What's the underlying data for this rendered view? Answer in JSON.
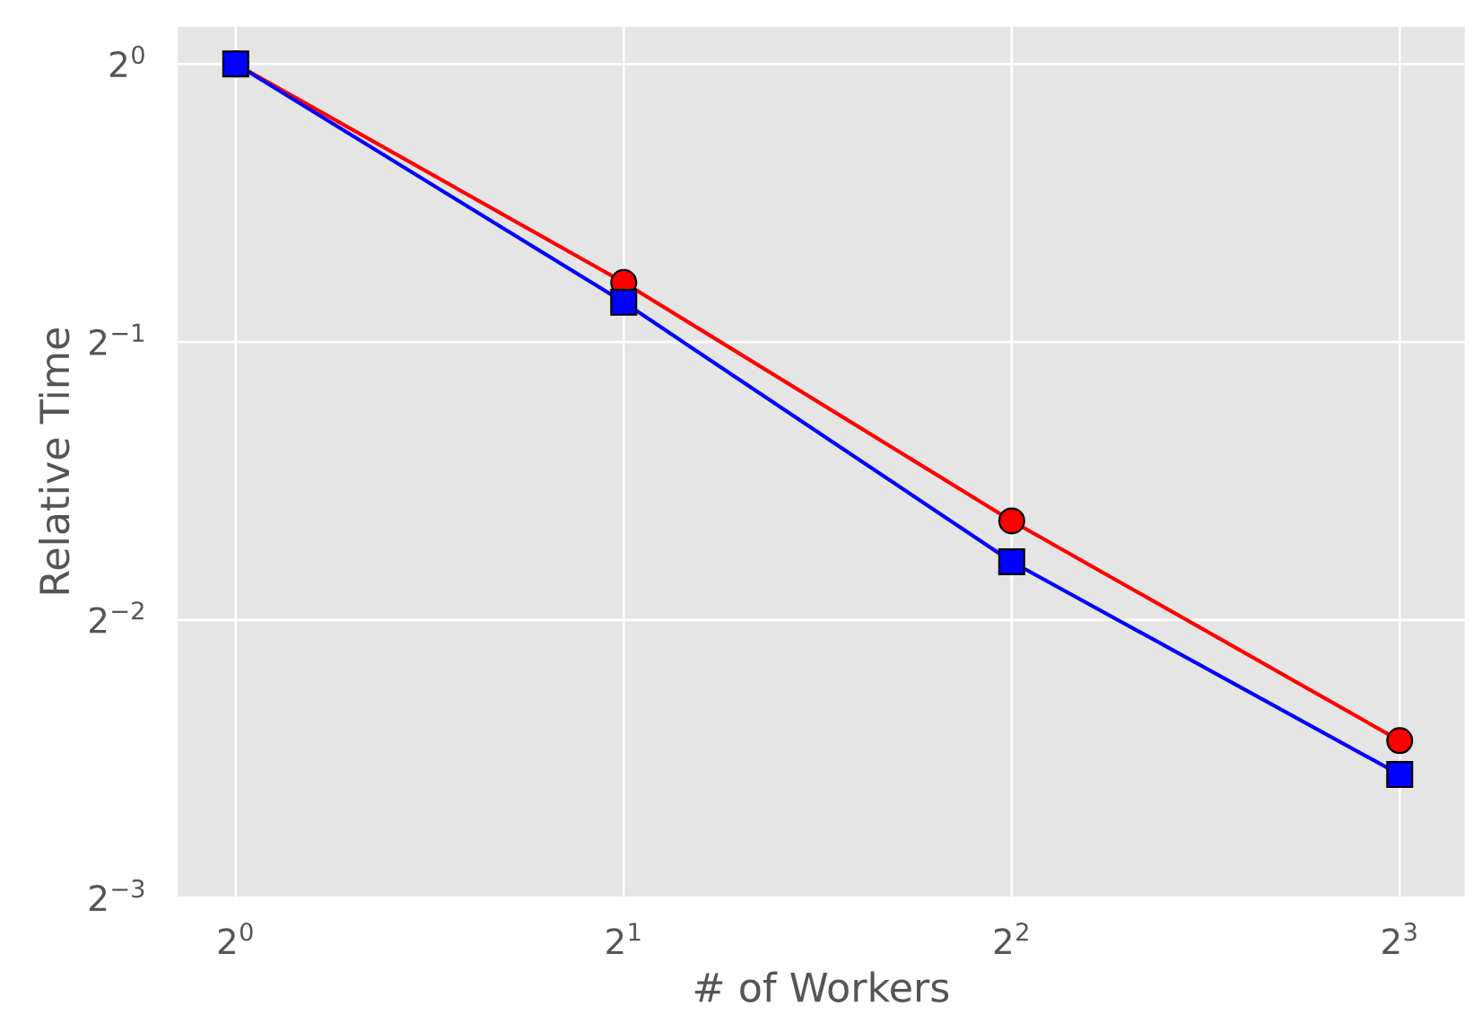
{
  "chart_data": {
    "type": "line",
    "xlabel": "# of Workers",
    "ylabel": "Relative Time",
    "x": [
      1,
      2,
      4,
      8
    ],
    "series": [
      {
        "color": "#ff0000",
        "marker": "circle",
        "values": [
          1,
          0.58,
          0.32,
          0.185
        ]
      },
      {
        "color": "#0000ff",
        "marker": "square",
        "values": [
          1,
          0.552,
          0.289,
          0.17
        ]
      }
    ],
    "log": "xy",
    "grid": true,
    "line_style": "solid",
    "xlim": [
      0.9,
      9
    ],
    "ylim": [
      0.125,
      1.1
    ],
    "xticks": [
      {
        "value": 1,
        "label": "2$^{0}$"
      },
      {
        "value": 2,
        "label": "2$^{1}$"
      },
      {
        "value": 4,
        "label": "2$^{2}$"
      },
      {
        "value": 8,
        "label": "2$^{3}$"
      }
    ],
    "yticks": [
      {
        "value": 0.125,
        "label": "2$^{−3}$"
      },
      {
        "value": 0.25,
        "label": "2$^{−2}$"
      },
      {
        "value": 0.5,
        "label": "2$^{−1}$"
      },
      {
        "value": 1,
        "label": "2$^{0}$"
      }
    ]
  }
}
